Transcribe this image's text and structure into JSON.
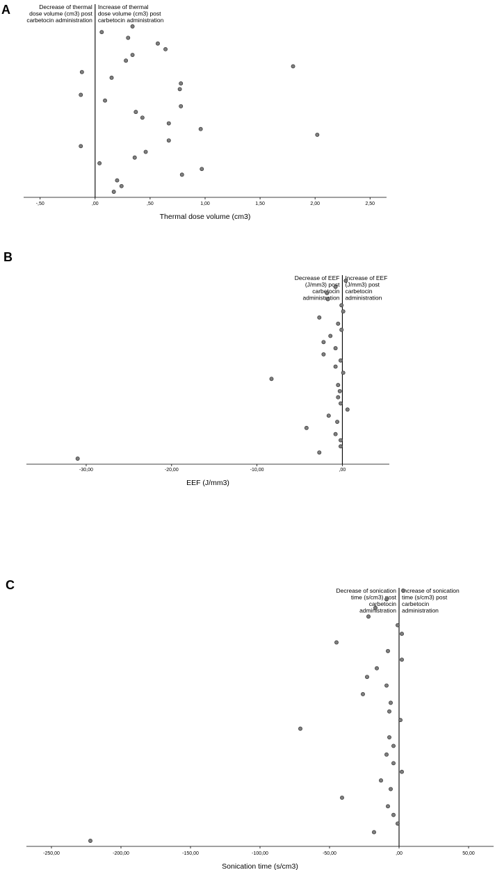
{
  "chart_data": [
    {
      "type": "scatter",
      "panel": "A",
      "xlabel": "Thermal dose volume (cm3)",
      "ylabel": "",
      "xlim": [
        -0.65,
        2.65
      ],
      "xticks": [
        -0.5,
        0.0,
        0.5,
        1.0,
        1.5,
        2.0,
        2.5
      ],
      "xtick_labels": [
        "-,50",
        ",00",
        ",50",
        "1,00",
        "1,50",
        "2,00",
        "2,50"
      ],
      "reference_line": 0,
      "annotation_left": [
        "Decrease of thermal",
        "dose volume (cm3) post",
        "carbetocin administration"
      ],
      "annotation_right": [
        "Increase of thermal",
        "dose volume (cm3) post",
        "carbetocin administration"
      ],
      "points": [
        0.34,
        0.06,
        0.3,
        0.57,
        0.64,
        0.34,
        0.28,
        1.8,
        -0.12,
        0.15,
        0.78,
        0.77,
        -0.13,
        0.09,
        0.78,
        0.37,
        0.43,
        0.67,
        0.96,
        2.02,
        0.67,
        -0.13,
        0.46,
        0.36,
        0.04,
        0.97,
        0.79,
        0.2,
        0.24,
        0.17
      ]
    },
    {
      "type": "scatter",
      "panel": "B",
      "xlabel": "EEF (J/mm3)",
      "ylabel": "",
      "xlim": [
        -37.0,
        5.5
      ],
      "xticks": [
        -30,
        -20,
        -10,
        0
      ],
      "xtick_labels": [
        "-30,00",
        "-20,00",
        "-10,00",
        ",00"
      ],
      "reference_line": 0,
      "annotation_left": [
        "Decrease of EEF",
        "(J/mm3) post",
        "carbetocin",
        "administration"
      ],
      "annotation_right": [
        "Increase of EEF",
        "(J/mm3) post",
        "carbetocin",
        "administration"
      ],
      "points": [
        0.4,
        -0.8,
        -1.8,
        -1.7,
        -0.1,
        0.1,
        -2.7,
        -0.5,
        -0.1,
        -1.4,
        -2.2,
        -0.8,
        -2.2,
        -0.2,
        -0.8,
        0.1,
        -8.3,
        -0.5,
        -0.3,
        -0.5,
        -0.2,
        0.6,
        -1.6,
        -0.6,
        -4.2,
        -0.8,
        -0.2,
        -0.2,
        -2.7,
        -31.0
      ]
    },
    {
      "type": "scatter",
      "panel": "C",
      "xlabel": "Sonication time (s/cm3)",
      "ylabel": "",
      "xlim": [
        -268.0,
        68.0
      ],
      "xticks": [
        -250,
        -200,
        -150,
        -100,
        -50,
        0,
        50
      ],
      "xtick_labels": [
        "-250,00",
        "-200,00",
        "-150,00",
        "-100,00",
        "-50,00",
        ",00",
        "50,00"
      ],
      "reference_line": 0,
      "annotation_left": [
        "Decrease of sonication",
        "time (s/cm3) post",
        "carbetocin",
        "administration"
      ],
      "annotation_right": [
        "Increase of sonication",
        "time (s/cm3) post",
        "carbetocin",
        "administration"
      ],
      "points": [
        3,
        -9,
        -17,
        -22,
        -1,
        2,
        -45,
        -8,
        2,
        -16,
        -23,
        -9,
        -26,
        -6,
        -7,
        1,
        -71,
        -7,
        -4,
        -9,
        -4,
        2,
        -13,
        -6,
        -41,
        -8,
        -4,
        -1,
        -18,
        -222
      ]
    }
  ]
}
